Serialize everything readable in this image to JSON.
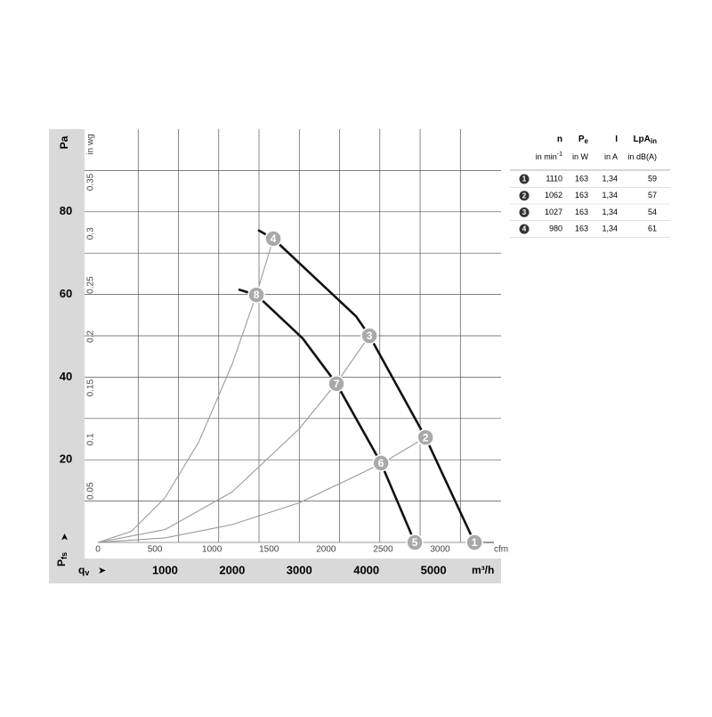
{
  "chart_data": {
    "type": "fan-curve",
    "y_label": "Pa",
    "y2_label": "in wg",
    "x_label": "m³/h",
    "x2_label": "cfm",
    "y_quantity": {
      "main": "P",
      "sub": "fs"
    },
    "x_quantity": {
      "main": "q",
      "sub": "v"
    },
    "xlim": [
      0,
      5900
    ],
    "xticks": [
      1000,
      2000,
      3000,
      4000,
      5000
    ],
    "xgrid": [
      600,
      1200,
      1800,
      2400,
      3000,
      3600,
      4200,
      4800,
      5400
    ],
    "x2lim": [
      0,
      3472
    ],
    "x2ticks": [
      0,
      500,
      1000,
      1500,
      2000,
      2500,
      3000
    ],
    "ylim": [
      0,
      100
    ],
    "yticks": [
      20,
      40,
      60,
      80
    ],
    "ygrid": [
      10,
      20,
      30,
      40,
      50,
      60,
      70,
      80,
      90
    ],
    "y2lim": [
      0,
      0.4015
    ],
    "y2ticks": [
      0.05,
      0.1,
      0.15,
      0.2,
      0.25,
      0.3,
      0.35
    ],
    "series": [
      {
        "kind": "fan",
        "color": "#111111",
        "x": [
          2387,
          2613,
          3846,
          4045,
          4881,
          5610
        ],
        "values": [
          75.6,
          73.5,
          54.7,
          50,
          25.4,
          0
        ]
      },
      {
        "kind": "fan",
        "color": "#111111",
        "x": [
          2095,
          2361,
          3050,
          3554,
          4218,
          4721
        ],
        "values": [
          61.2,
          59.9,
          49.4,
          38.4,
          19.2,
          0
        ]
      },
      {
        "kind": "system",
        "color": "#9a9a9a",
        "x": [
          0,
          500,
          1000,
          1500,
          2000,
          2361,
          2613
        ],
        "values": [
          0,
          2.7,
          10.8,
          24.2,
          43.1,
          60,
          73.5
        ]
      },
      {
        "kind": "system",
        "color": "#9a9a9a",
        "x": [
          0,
          1000,
          2000,
          3000,
          3554,
          4045
        ],
        "values": [
          0,
          3.1,
          12.2,
          27.5,
          38.6,
          50
        ]
      },
      {
        "kind": "system",
        "color": "#9a9a9a",
        "x": [
          0,
          1000,
          2000,
          3000,
          4218,
          4881
        ],
        "values": [
          0,
          1.1,
          4.3,
          9.6,
          19,
          25.4
        ]
      },
      {
        "kind": "system",
        "color": "#9a9a9a",
        "x": [
          0,
          5610
        ],
        "values": [
          0,
          0
        ]
      }
    ],
    "points": [
      {
        "label": "1",
        "x": 5610,
        "y": 0
      },
      {
        "label": "2",
        "x": 4881,
        "y": 25.4
      },
      {
        "label": "3",
        "x": 4045,
        "y": 50
      },
      {
        "label": "4",
        "x": 2613,
        "y": 73.5
      },
      {
        "label": "5",
        "x": 4721,
        "y": 0
      },
      {
        "label": "6",
        "x": 4218,
        "y": 19.2
      },
      {
        "label": "7",
        "x": 3554,
        "y": 38.4
      },
      {
        "label": "8",
        "x": 2361,
        "y": 59.9
      }
    ]
  },
  "table": {
    "headers": [
      {
        "main": "n",
        "sub": ""
      },
      {
        "main": "P",
        "sub": "e"
      },
      {
        "main": "I",
        "sub": ""
      },
      {
        "main": "LpA",
        "sub": "in"
      }
    ],
    "units": [
      {
        "main": "in min",
        "sup": "-1"
      },
      {
        "main": "in W",
        "sup": ""
      },
      {
        "main": "in A",
        "sup": ""
      },
      {
        "main": "in dB(A)",
        "sup": ""
      }
    ],
    "rows": [
      [
        "1",
        1110,
        163,
        "1,34",
        59
      ],
      [
        "2",
        1062,
        163,
        "1,34",
        57
      ],
      [
        "3",
        1027,
        163,
        "1,34",
        54
      ],
      [
        "4",
        980,
        163,
        "1,34",
        61
      ]
    ]
  }
}
